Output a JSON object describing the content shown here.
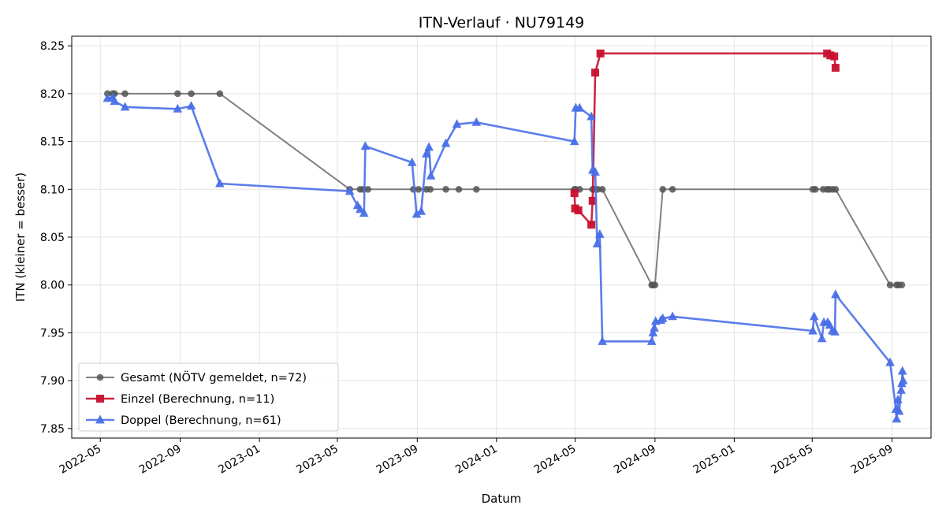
{
  "chart_data": {
    "type": "line",
    "title": "ITN-Verlauf · NU79149",
    "xlabel": "Datum",
    "ylabel": "ITN  (kleiner = besser)",
    "ylim": [
      7.84,
      8.26
    ],
    "xlim": [
      "2022-03-18",
      "2025-10-31"
    ],
    "grid": true,
    "legend_position": "lower-left",
    "x_tick_labels": [
      "2022-05",
      "2022-09",
      "2023-01",
      "2023-05",
      "2023-09",
      "2024-01",
      "2024-05",
      "2024-09",
      "2025-01",
      "2025-05",
      "2025-09"
    ],
    "x_ticks": [
      "2022-05-01",
      "2022-09-01",
      "2023-01-01",
      "2023-05-01",
      "2023-09-01",
      "2024-01-01",
      "2024-05-01",
      "2024-09-01",
      "2025-01-01",
      "2025-05-01",
      "2025-09-01"
    ],
    "y_tick_labels": [
      "7.85",
      "7.90",
      "7.95",
      "8.00",
      "8.05",
      "8.10",
      "8.15",
      "8.20",
      "8.25"
    ],
    "y_ticks": [
      7.85,
      7.9,
      7.95,
      8.0,
      8.05,
      8.1,
      8.15,
      8.2,
      8.25
    ],
    "series": [
      {
        "name": "Gesamt (NÖTV gemeldet, n=72)",
        "color": "#555555",
        "marker": "circle",
        "points": [
          [
            "2022-05-12",
            8.2
          ],
          [
            "2022-05-20",
            8.2
          ],
          [
            "2022-05-23",
            8.2
          ],
          [
            "2022-06-08",
            8.2
          ],
          [
            "2022-08-28",
            8.2
          ],
          [
            "2022-09-18",
            8.2
          ],
          [
            "2022-11-01",
            8.2
          ],
          [
            "2023-05-20",
            8.1
          ],
          [
            "2023-06-05",
            8.1
          ],
          [
            "2023-06-10",
            8.1
          ],
          [
            "2023-06-17",
            8.1
          ],
          [
            "2023-08-26",
            8.1
          ],
          [
            "2023-09-03",
            8.1
          ],
          [
            "2023-09-15",
            8.1
          ],
          [
            "2023-09-21",
            8.1
          ],
          [
            "2023-10-15",
            8.1
          ],
          [
            "2023-11-04",
            8.1
          ],
          [
            "2023-12-01",
            8.1
          ],
          [
            "2024-04-30",
            8.1
          ],
          [
            "2024-05-02",
            8.1
          ],
          [
            "2024-05-08",
            8.1
          ],
          [
            "2024-05-28",
            8.1
          ],
          [
            "2024-05-31",
            8.1
          ],
          [
            "2024-06-05",
            8.1
          ],
          [
            "2024-06-12",
            8.1
          ],
          [
            "2024-08-27",
            8.0
          ],
          [
            "2024-08-29",
            8.0
          ],
          [
            "2024-09-01",
            8.0
          ],
          [
            "2024-09-13",
            8.1
          ],
          [
            "2024-09-28",
            8.1
          ],
          [
            "2025-05-02",
            8.1
          ],
          [
            "2025-05-06",
            8.1
          ],
          [
            "2025-05-18",
            8.1
          ],
          [
            "2025-05-24",
            8.1
          ],
          [
            "2025-05-27",
            8.1
          ],
          [
            "2025-06-01",
            8.1
          ],
          [
            "2025-06-06",
            8.1
          ],
          [
            "2025-08-29",
            8.0
          ],
          [
            "2025-09-08",
            8.0
          ],
          [
            "2025-09-11",
            8.0
          ],
          [
            "2025-09-16",
            8.0
          ]
        ]
      },
      {
        "name": "Einzel (Berechnung, n=11)",
        "color": "#c8102e",
        "marker": "square",
        "points": [
          [
            "2024-04-30",
            8.096
          ],
          [
            "2024-05-01",
            8.08
          ],
          [
            "2024-05-06",
            8.078
          ],
          [
            "2024-05-26",
            8.063
          ],
          [
            "2024-05-28",
            8.088
          ],
          [
            "2024-06-01",
            8.222
          ],
          [
            "2024-06-09",
            8.242
          ],
          [
            "2025-05-24",
            8.242
          ],
          [
            "2025-05-29",
            8.24
          ],
          [
            "2025-06-04",
            8.239
          ],
          [
            "2025-06-06",
            8.227
          ]
        ]
      },
      {
        "name": "Doppel (Berechnung, n=61)",
        "color": "#4a6fe8",
        "marker": "triangle",
        "points": [
          [
            "2022-05-12",
            8.195
          ],
          [
            "2022-05-20",
            8.196
          ],
          [
            "2022-05-23",
            8.192
          ],
          [
            "2022-06-08",
            8.186
          ],
          [
            "2022-08-28",
            8.184
          ],
          [
            "2022-09-18",
            8.187
          ],
          [
            "2022-11-01",
            8.106
          ],
          [
            "2023-05-20",
            8.098
          ],
          [
            "2023-06-01",
            8.083
          ],
          [
            "2023-06-05",
            8.079
          ],
          [
            "2023-06-11",
            8.075
          ],
          [
            "2023-06-13",
            8.145
          ],
          [
            "2023-08-24",
            8.128
          ],
          [
            "2023-08-31",
            8.074
          ],
          [
            "2023-09-07",
            8.077
          ],
          [
            "2023-09-15",
            8.137
          ],
          [
            "2023-09-19",
            8.144
          ],
          [
            "2023-09-22",
            8.114
          ],
          [
            "2023-10-15",
            8.148
          ],
          [
            "2023-11-01",
            8.168
          ],
          [
            "2023-12-01",
            8.17
          ],
          [
            "2024-04-30",
            8.15
          ],
          [
            "2024-05-02",
            8.185
          ],
          [
            "2024-05-08",
            8.185
          ],
          [
            "2024-05-26",
            8.176
          ],
          [
            "2024-05-28",
            8.12
          ],
          [
            "2024-06-01",
            8.118
          ],
          [
            "2024-06-04",
            8.043
          ],
          [
            "2024-06-08",
            8.053
          ],
          [
            "2024-06-12",
            7.941
          ],
          [
            "2024-08-27",
            7.941
          ],
          [
            "2024-08-29",
            7.95
          ],
          [
            "2024-08-31",
            7.955
          ],
          [
            "2024-09-02",
            7.962
          ],
          [
            "2024-09-10",
            7.963
          ],
          [
            "2024-09-13",
            7.965
          ],
          [
            "2024-09-28",
            7.967
          ],
          [
            "2025-05-02",
            7.952
          ],
          [
            "2025-05-04",
            7.967
          ],
          [
            "2025-05-16",
            7.944
          ],
          [
            "2025-05-19",
            7.961
          ],
          [
            "2025-05-25",
            7.961
          ],
          [
            "2025-05-28",
            7.958
          ],
          [
            "2025-06-01",
            7.952
          ],
          [
            "2025-06-05",
            7.951
          ],
          [
            "2025-06-06",
            7.99
          ],
          [
            "2025-08-29",
            7.919
          ],
          [
            "2025-09-07",
            7.87
          ],
          [
            "2025-09-08",
            7.86
          ],
          [
            "2025-09-10",
            7.88
          ],
          [
            "2025-09-12",
            7.868
          ],
          [
            "2025-09-15",
            7.89
          ],
          [
            "2025-09-16",
            7.897
          ],
          [
            "2025-09-17",
            7.91
          ],
          [
            "2025-09-18",
            7.9
          ]
        ]
      }
    ]
  }
}
